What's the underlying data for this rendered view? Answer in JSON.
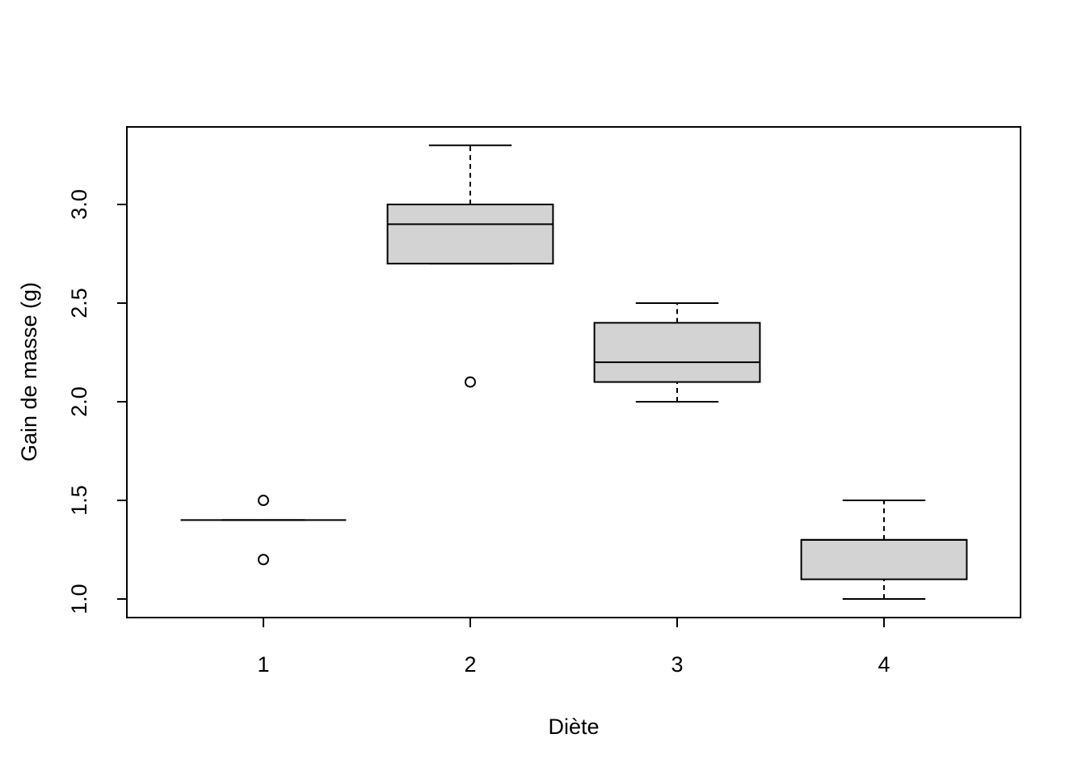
{
  "chart_data": {
    "type": "boxplot",
    "x_label": "Diète",
    "y_label": "Gain de masse (g)",
    "categories": [
      "1",
      "2",
      "3",
      "4"
    ],
    "min": [
      1.4,
      2.7,
      2.0,
      1.0
    ],
    "q1": [
      1.4,
      2.7,
      2.1,
      1.1
    ],
    "median": [
      1.4,
      2.9,
      2.2,
      1.3
    ],
    "q3": [
      1.4,
      3.0,
      2.4,
      1.3
    ],
    "max": [
      1.4,
      3.3,
      2.5,
      1.5
    ],
    "outliers": [
      [
        1.5,
        1.2
      ],
      [
        2.1
      ],
      [],
      []
    ],
    "color": "#d3d3d3",
    "ylim": [
      0.906,
      3.393
    ],
    "yticks": [
      {
        "value": 1,
        "label": "1.0"
      },
      {
        "value": 1.5,
        "label": "1.5"
      },
      {
        "value": 2,
        "label": "2.0"
      },
      {
        "value": 2.5,
        "label": "2.5"
      },
      {
        "value": 3,
        "label": "3.0"
      }
    ]
  }
}
